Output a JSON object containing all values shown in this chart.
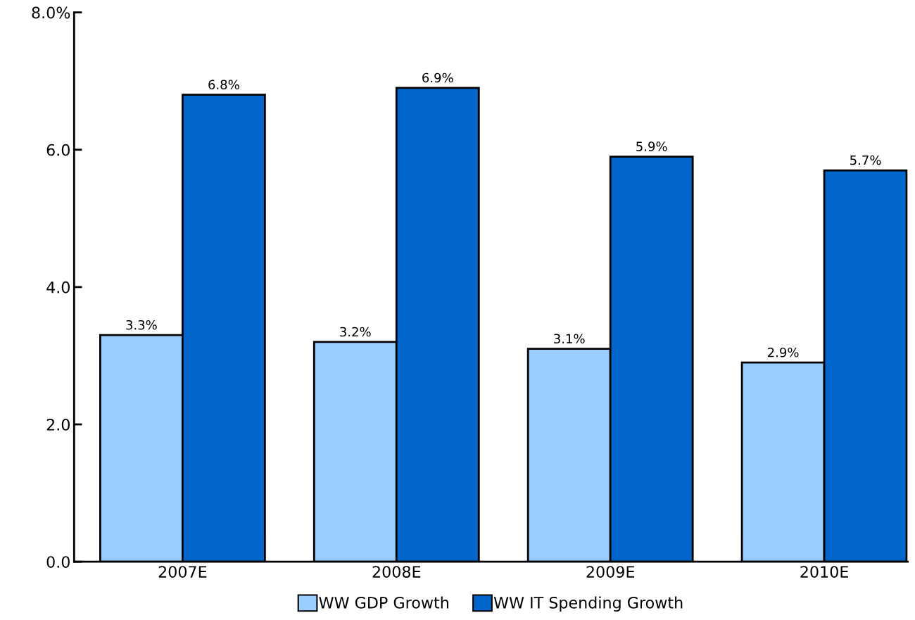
{
  "chart_data": {
    "type": "bar",
    "categories": [
      "2007E",
      "2008E",
      "2009E",
      "2010E"
    ],
    "series": [
      {
        "name": "WW GDP Growth",
        "color": "#99ccff",
        "values": [
          3.3,
          3.2,
          3.1,
          2.9
        ],
        "value_labels": [
          "3.3%",
          "3.2%",
          "3.1%",
          "2.9%"
        ]
      },
      {
        "name": "WW IT Spending Growth",
        "color": "#0066cc",
        "values": [
          6.8,
          6.9,
          5.9,
          5.7
        ],
        "value_labels": [
          "6.8%",
          "6.9%",
          "5.9%",
          "5.7%"
        ]
      }
    ],
    "ylim": [
      0,
      8
    ],
    "yticks": [
      {
        "value": 0,
        "label": "0.0"
      },
      {
        "value": 2,
        "label": "2.0"
      },
      {
        "value": 4,
        "label": "4.0"
      },
      {
        "value": 6,
        "label": "6.0"
      },
      {
        "value": 8,
        "label": "8.0%"
      }
    ],
    "grid": false,
    "legend": "bottom"
  }
}
